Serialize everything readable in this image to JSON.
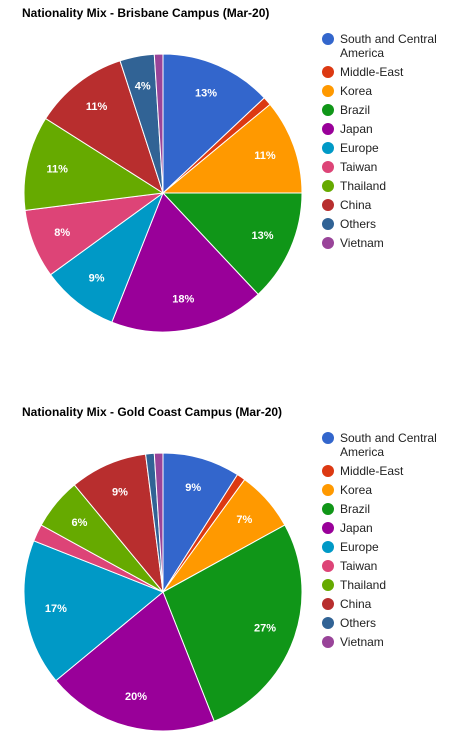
{
  "chart_data": [
    {
      "type": "pie",
      "title": "Nationality Mix - Brisbane Campus (Mar-20)",
      "categories": [
        "South and Central America",
        "Middle-East",
        "Korea",
        "Brazil",
        "Japan",
        "Europe",
        "Taiwan",
        "Thailand",
        "China",
        "Others",
        "Vietnam"
      ],
      "values": [
        13,
        1,
        11,
        13,
        18,
        9,
        8,
        11,
        11,
        4,
        1
      ],
      "value_labels": [
        "13%",
        null,
        "11%",
        "13%",
        "18%",
        "9%",
        "8%",
        "11%",
        "11%",
        "4%",
        null
      ],
      "colors": [
        "#3366cc",
        "#dc3912",
        "#ff9900",
        "#109618",
        "#990099",
        "#0099c6",
        "#dd4477",
        "#66aa00",
        "#b82e2e",
        "#316395",
        "#994499"
      ],
      "legend": "right"
    },
    {
      "type": "pie",
      "title": "Nationality Mix - Gold Coast Campus (Mar-20)",
      "categories": [
        "South and Central America",
        "Middle-East",
        "Korea",
        "Brazil",
        "Japan",
        "Europe",
        "Taiwan",
        "Thailand",
        "China",
        "Others",
        "Vietnam"
      ],
      "values": [
        9,
        1,
        7,
        27,
        20,
        17,
        2,
        6,
        9,
        1,
        1
      ],
      "value_labels": [
        "9%",
        null,
        "7%",
        "27%",
        "20%",
        "17%",
        null,
        "6%",
        "9%",
        null,
        null
      ],
      "colors": [
        "#3366cc",
        "#dc3912",
        "#ff9900",
        "#109618",
        "#990099",
        "#0099c6",
        "#dd4477",
        "#66aa00",
        "#b82e2e",
        "#316395",
        "#994499"
      ],
      "legend": "right"
    }
  ]
}
